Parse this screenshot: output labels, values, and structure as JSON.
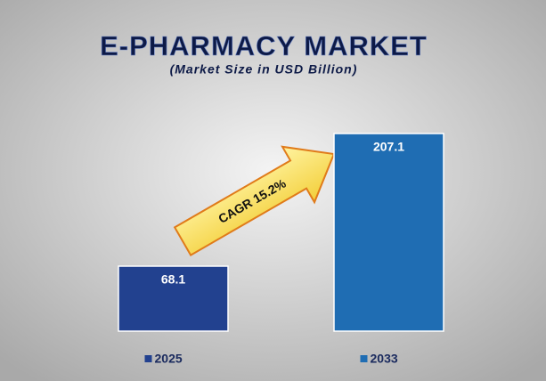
{
  "chart_data": {
    "type": "bar",
    "title": "E-PHARMACY MARKET",
    "subtitle": "(Market Size in USD Billion)",
    "annotation": "CAGR 15.2%",
    "series": [
      {
        "name": "2025",
        "color": "#22418f",
        "values": [
          68.1
        ]
      },
      {
        "name": "2033",
        "color": "#1f6db3",
        "values": [
          207.1
        ]
      }
    ]
  }
}
